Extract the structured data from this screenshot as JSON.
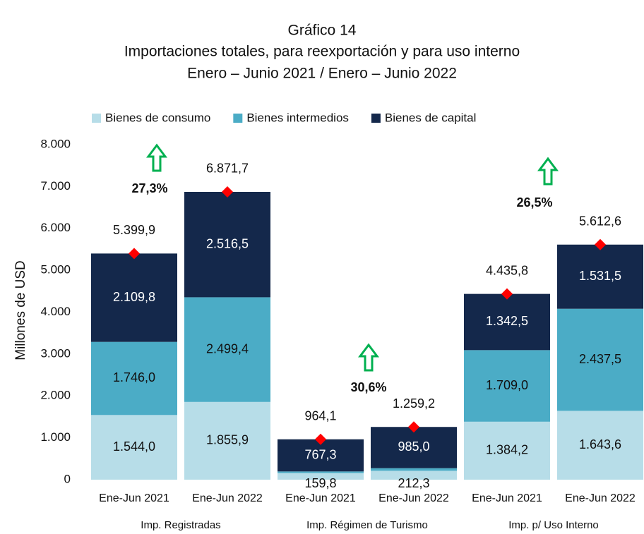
{
  "chart_data": {
    "type": "stacked_bar",
    "title": "Gráfico 14",
    "subtitle": "Importaciones totales, para reexportación y para uso interno",
    "subtitle2": "Enero – Junio 2021 / Enero – Junio  2022",
    "y_label": "Millones de USD",
    "categories": [
      "Ene-Jun 2021",
      "Ene-Jun 2022",
      "Ene-Jun 2021",
      "Ene-Jun 2022",
      "Ene-Jun 2021",
      "Ene-Jun 2022"
    ],
    "groups": [
      "Imp. Registradas",
      "Imp. Régimen de Turismo",
      "Imp. p/ Uso Interno"
    ],
    "series": [
      {
        "name": "Bienes de consumo",
        "color": "#b7dde8",
        "label_color": "#111111",
        "values": [
          1544.0,
          1855.9,
          159.8,
          212.3,
          1384.2,
          1643.6
        ],
        "value_labels": [
          "1.544,0",
          "1.855,9",
          "159,8",
          "212,3",
          "1.384,2",
          "1.643,6"
        ]
      },
      {
        "name": "Bienes intermedios",
        "color": "#4bacc6",
        "label_color": "#111111",
        "values": [
          1746.0,
          2499.4,
          37.0,
          61.9,
          1709.0,
          2437.5
        ],
        "value_labels": [
          "1.746,0",
          "2.499,4",
          null,
          null,
          "1.709,0",
          "2.437,5"
        ]
      },
      {
        "name": "Bienes de capital",
        "color": "#14284b",
        "label_color": "#ffffff",
        "values": [
          2109.8,
          2516.5,
          767.3,
          985.0,
          1342.5,
          1531.5
        ],
        "value_labels": [
          "2.109,8",
          "2.516,5",
          "767,3",
          "985,0",
          "1.342,5",
          "1.531,5"
        ]
      }
    ],
    "totals": [
      5399.9,
      6871.7,
      964.1,
      1259.2,
      4435.8,
      5612.6
    ],
    "totals_labels": [
      "5.399,9",
      "6.871,7",
      "964,1",
      "1.259,2",
      "4.435,8",
      "5.612,6"
    ],
    "total_marker_color": "#ff0000",
    "annotations": [
      "27,3%",
      "30,6%",
      "26,5%"
    ],
    "annotation_arrow_color": "#00b050",
    "ylim": [
      0,
      8000
    ],
    "yticks": [
      0,
      {
        "value": 1000,
        "label": "1.000"
      },
      {
        "value": 2000,
        "label": "2.000"
      },
      {
        "value": 3000,
        "label": "3.000"
      },
      {
        "value": 4000,
        "label": "4.000"
      },
      {
        "value": 5000,
        "label": "5.000"
      },
      {
        "value": 6000,
        "label": "6.000"
      },
      {
        "value": 7000,
        "label": "7.000"
      },
      {
        "value": 8000,
        "label": "8.000"
      }
    ],
    "grid": false,
    "legend": "top"
  }
}
